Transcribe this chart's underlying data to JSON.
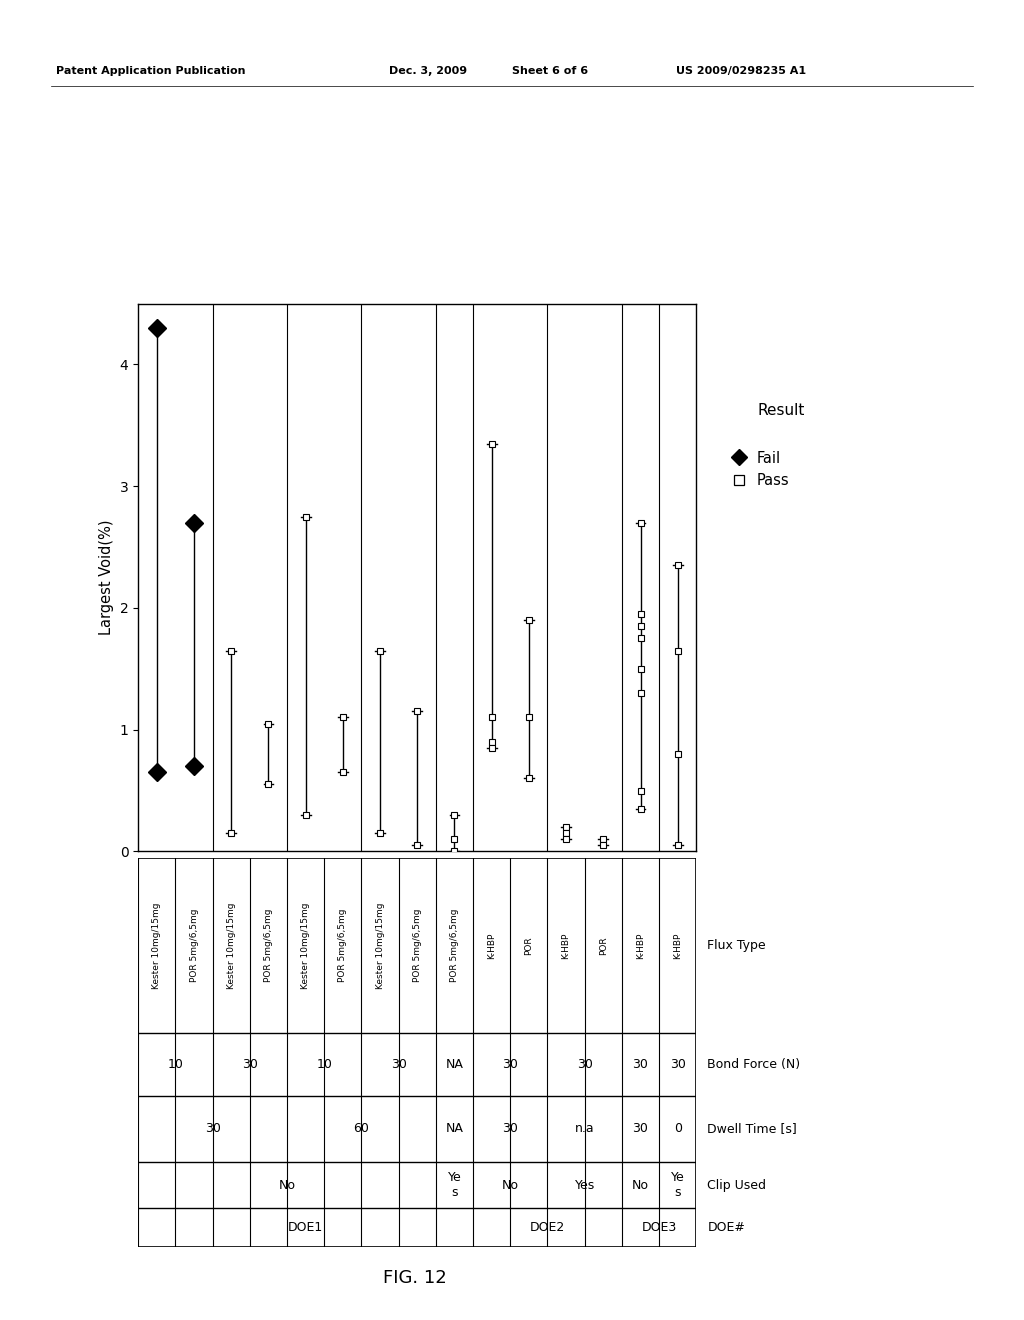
{
  "ylabel": "Largest Void(%)",
  "ylim": [
    0,
    4.5
  ],
  "columns": [
    "Kester 10mg/15mg",
    "POR 5mg/6,5mg",
    "Kester 10mg/15mg",
    "POR 5mg/6,5mg",
    "Kester 10mg/15mg",
    "POR 5mg/6,5mg",
    "Kester 10mg/15mg",
    "POR 5mg/6,5mg",
    "POR 5mg/6,5mg",
    "K-HBP",
    "POR",
    "K-HBP",
    "POR",
    "K-HBP",
    "K-HBP"
  ],
  "data": [
    {
      "x": 0,
      "type": "fail",
      "ymin": 0.65,
      "ymax": 4.3,
      "points": [
        4.3,
        0.65
      ]
    },
    {
      "x": 1,
      "type": "fail",
      "ymin": 0.7,
      "ymax": 2.7,
      "points": [
        2.7,
        0.7
      ]
    },
    {
      "x": 2,
      "type": "pass",
      "ymin": 0.15,
      "ymax": 1.65,
      "points": [
        1.65,
        0.15
      ]
    },
    {
      "x": 3,
      "type": "pass",
      "ymin": 0.55,
      "ymax": 1.05,
      "points": [
        1.05,
        0.55
      ]
    },
    {
      "x": 4,
      "type": "pass",
      "ymin": 0.3,
      "ymax": 2.75,
      "points": [
        2.75,
        0.3
      ]
    },
    {
      "x": 5,
      "type": "pass",
      "ymin": 0.65,
      "ymax": 1.1,
      "points": [
        1.1,
        0.65
      ]
    },
    {
      "x": 6,
      "type": "pass",
      "ymin": 0.15,
      "ymax": 1.65,
      "points": [
        1.65,
        0.15
      ]
    },
    {
      "x": 7,
      "type": "pass",
      "ymin": 0.05,
      "ymax": 1.15,
      "points": [
        1.15,
        0.05
      ]
    },
    {
      "x": 8,
      "type": "pass",
      "ymin": 0.0,
      "ymax": 0.3,
      "points": [
        0.3,
        0.1,
        0.0
      ]
    },
    {
      "x": 9,
      "type": "pass",
      "ymin": 0.85,
      "ymax": 3.35,
      "points": [
        3.35,
        1.1,
        0.9,
        0.85
      ]
    },
    {
      "x": 10,
      "type": "pass",
      "ymin": 0.6,
      "ymax": 1.9,
      "points": [
        1.9,
        1.1,
        0.6
      ]
    },
    {
      "x": 11,
      "type": "pass",
      "ymin": 0.1,
      "ymax": 0.2,
      "points": [
        0.2,
        0.15,
        0.1
      ]
    },
    {
      "x": 12,
      "type": "pass",
      "ymin": 0.05,
      "ymax": 0.1,
      "points": [
        0.1,
        0.05
      ]
    },
    {
      "x": 13,
      "type": "pass",
      "ymin": 0.35,
      "ymax": 2.7,
      "points": [
        2.7,
        1.95,
        1.85,
        1.75,
        1.5,
        1.3,
        0.5,
        0.35
      ]
    },
    {
      "x": 14,
      "type": "pass",
      "ymin": 0.05,
      "ymax": 2.35,
      "points": [
        2.35,
        1.65,
        0.8,
        0.05
      ]
    }
  ],
  "group_dividers": [
    1.5,
    3.5,
    5.5,
    7.5,
    8.5,
    10.5,
    12.5,
    13.5
  ],
  "bond_force_cells": [
    {
      "cols": [
        0,
        1
      ],
      "val": "10"
    },
    {
      "cols": [
        2,
        3
      ],
      "val": "30"
    },
    {
      "cols": [
        4,
        5
      ],
      "val": "10"
    },
    {
      "cols": [
        6,
        7
      ],
      "val": "30"
    },
    {
      "cols": [
        8
      ],
      "val": "NA"
    },
    {
      "cols": [
        9,
        10
      ],
      "val": "30"
    },
    {
      "cols": [
        11,
        12
      ],
      "val": "30"
    },
    {
      "cols": [
        13
      ],
      "val": "30"
    },
    {
      "cols": [
        14
      ],
      "val": "30"
    }
  ],
  "dwell_time_cells": [
    {
      "cols": [
        0,
        1,
        2,
        3
      ],
      "val": "30"
    },
    {
      "cols": [
        4,
        5,
        6,
        7
      ],
      "val": "60"
    },
    {
      "cols": [
        8
      ],
      "val": "NA"
    },
    {
      "cols": [
        9,
        10
      ],
      "val": "30"
    },
    {
      "cols": [
        11,
        12
      ],
      "val": "n.a"
    },
    {
      "cols": [
        13
      ],
      "val": "30"
    },
    {
      "cols": [
        14
      ],
      "val": "0"
    }
  ],
  "clip_used_cells": [
    {
      "cols": [
        0,
        1,
        2,
        3,
        4,
        5,
        6,
        7
      ],
      "val": "No"
    },
    {
      "cols": [
        8
      ],
      "val": "Ye\ns"
    },
    {
      "cols": [
        9,
        10
      ],
      "val": "No"
    },
    {
      "cols": [
        11,
        12
      ],
      "val": "Yes"
    },
    {
      "cols": [
        13
      ],
      "val": "No"
    },
    {
      "cols": [
        14
      ],
      "val": "Ye\ns"
    }
  ],
  "doe_cells": [
    {
      "cols": [
        0,
        1,
        2,
        3,
        4,
        5,
        6,
        7,
        8
      ],
      "val": "DOE1"
    },
    {
      "cols": [
        9,
        10,
        11,
        12
      ],
      "val": "DOE2"
    },
    {
      "cols": [
        13,
        14
      ],
      "val": "DOE3"
    }
  ],
  "table_row_labels": [
    "Flux Type",
    "Bond Force (N)",
    "Dwell Time [s]",
    "Clip Used",
    "DOE#"
  ],
  "patent_left": "Patent Application Publication",
  "patent_mid1": "Dec. 3, 2009",
  "patent_mid2": "Sheet 6 of 6",
  "patent_right": "US 2009/0298235 A1",
  "fig_caption": "FIG. 12",
  "legend_title": "Result",
  "legend_fail": "Fail",
  "legend_pass": "Pass"
}
